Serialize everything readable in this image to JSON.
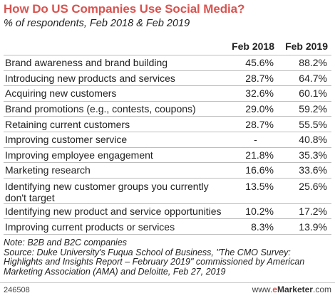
{
  "header": {
    "title": "How Do US Companies Use Social Media?",
    "subtitle": "% of respondents, Feb 2018 & Feb 2019"
  },
  "chart_data": {
    "type": "table",
    "title": "How Do US Companies Use Social Media?",
    "subtitle": "% of respondents, Feb 2018 & Feb 2019",
    "columns": [
      "",
      "Feb 2018",
      "Feb 2019"
    ],
    "rows": [
      {
        "label": "Brand awareness and brand building",
        "feb2018": "45.6%",
        "feb2019": "88.2%"
      },
      {
        "label": "Introducing new products and services",
        "feb2018": "28.7%",
        "feb2019": "64.7%"
      },
      {
        "label": "Acquiring new customers",
        "feb2018": "32.6%",
        "feb2019": "60.1%"
      },
      {
        "label": "Brand promotions (e.g., contests, coupons)",
        "feb2018": "29.0%",
        "feb2019": "59.2%"
      },
      {
        "label": "Retaining current customers",
        "feb2018": "28.7%",
        "feb2019": "55.5%"
      },
      {
        "label": "Improving customer service",
        "feb2018": "-",
        "feb2019": "40.8%"
      },
      {
        "label": "Improving employee engagement",
        "feb2018": "21.8%",
        "feb2019": "35.3%"
      },
      {
        "label": "Marketing research",
        "feb2018": "16.6%",
        "feb2019": "33.6%"
      },
      {
        "label": "Identifying new customer groups you currently don't target",
        "feb2018": "13.5%",
        "feb2019": "25.6%"
      },
      {
        "label": "Identifying new product and service opportunities",
        "feb2018": "10.2%",
        "feb2019": "17.2%"
      },
      {
        "label": "Improving current products or services",
        "feb2018": "8.3%",
        "feb2019": "13.9%"
      }
    ]
  },
  "notes": {
    "note": "Note: B2B and B2C companies",
    "source": "Source: Duke University's Fuqua School of Business, \"The CMO Survey: Highlights and Insights Report – February 2019\" commissioned by American Marketing Association (AMA) and Deloitte, Feb 27, 2019"
  },
  "footer": {
    "id": "246508",
    "site_prefix": "www.",
    "brand_e": "e",
    "brand_rest": "Marketer",
    "site_suffix": ".com"
  },
  "colors": {
    "title": "#d9534f",
    "rule": "#bdbdbd"
  }
}
